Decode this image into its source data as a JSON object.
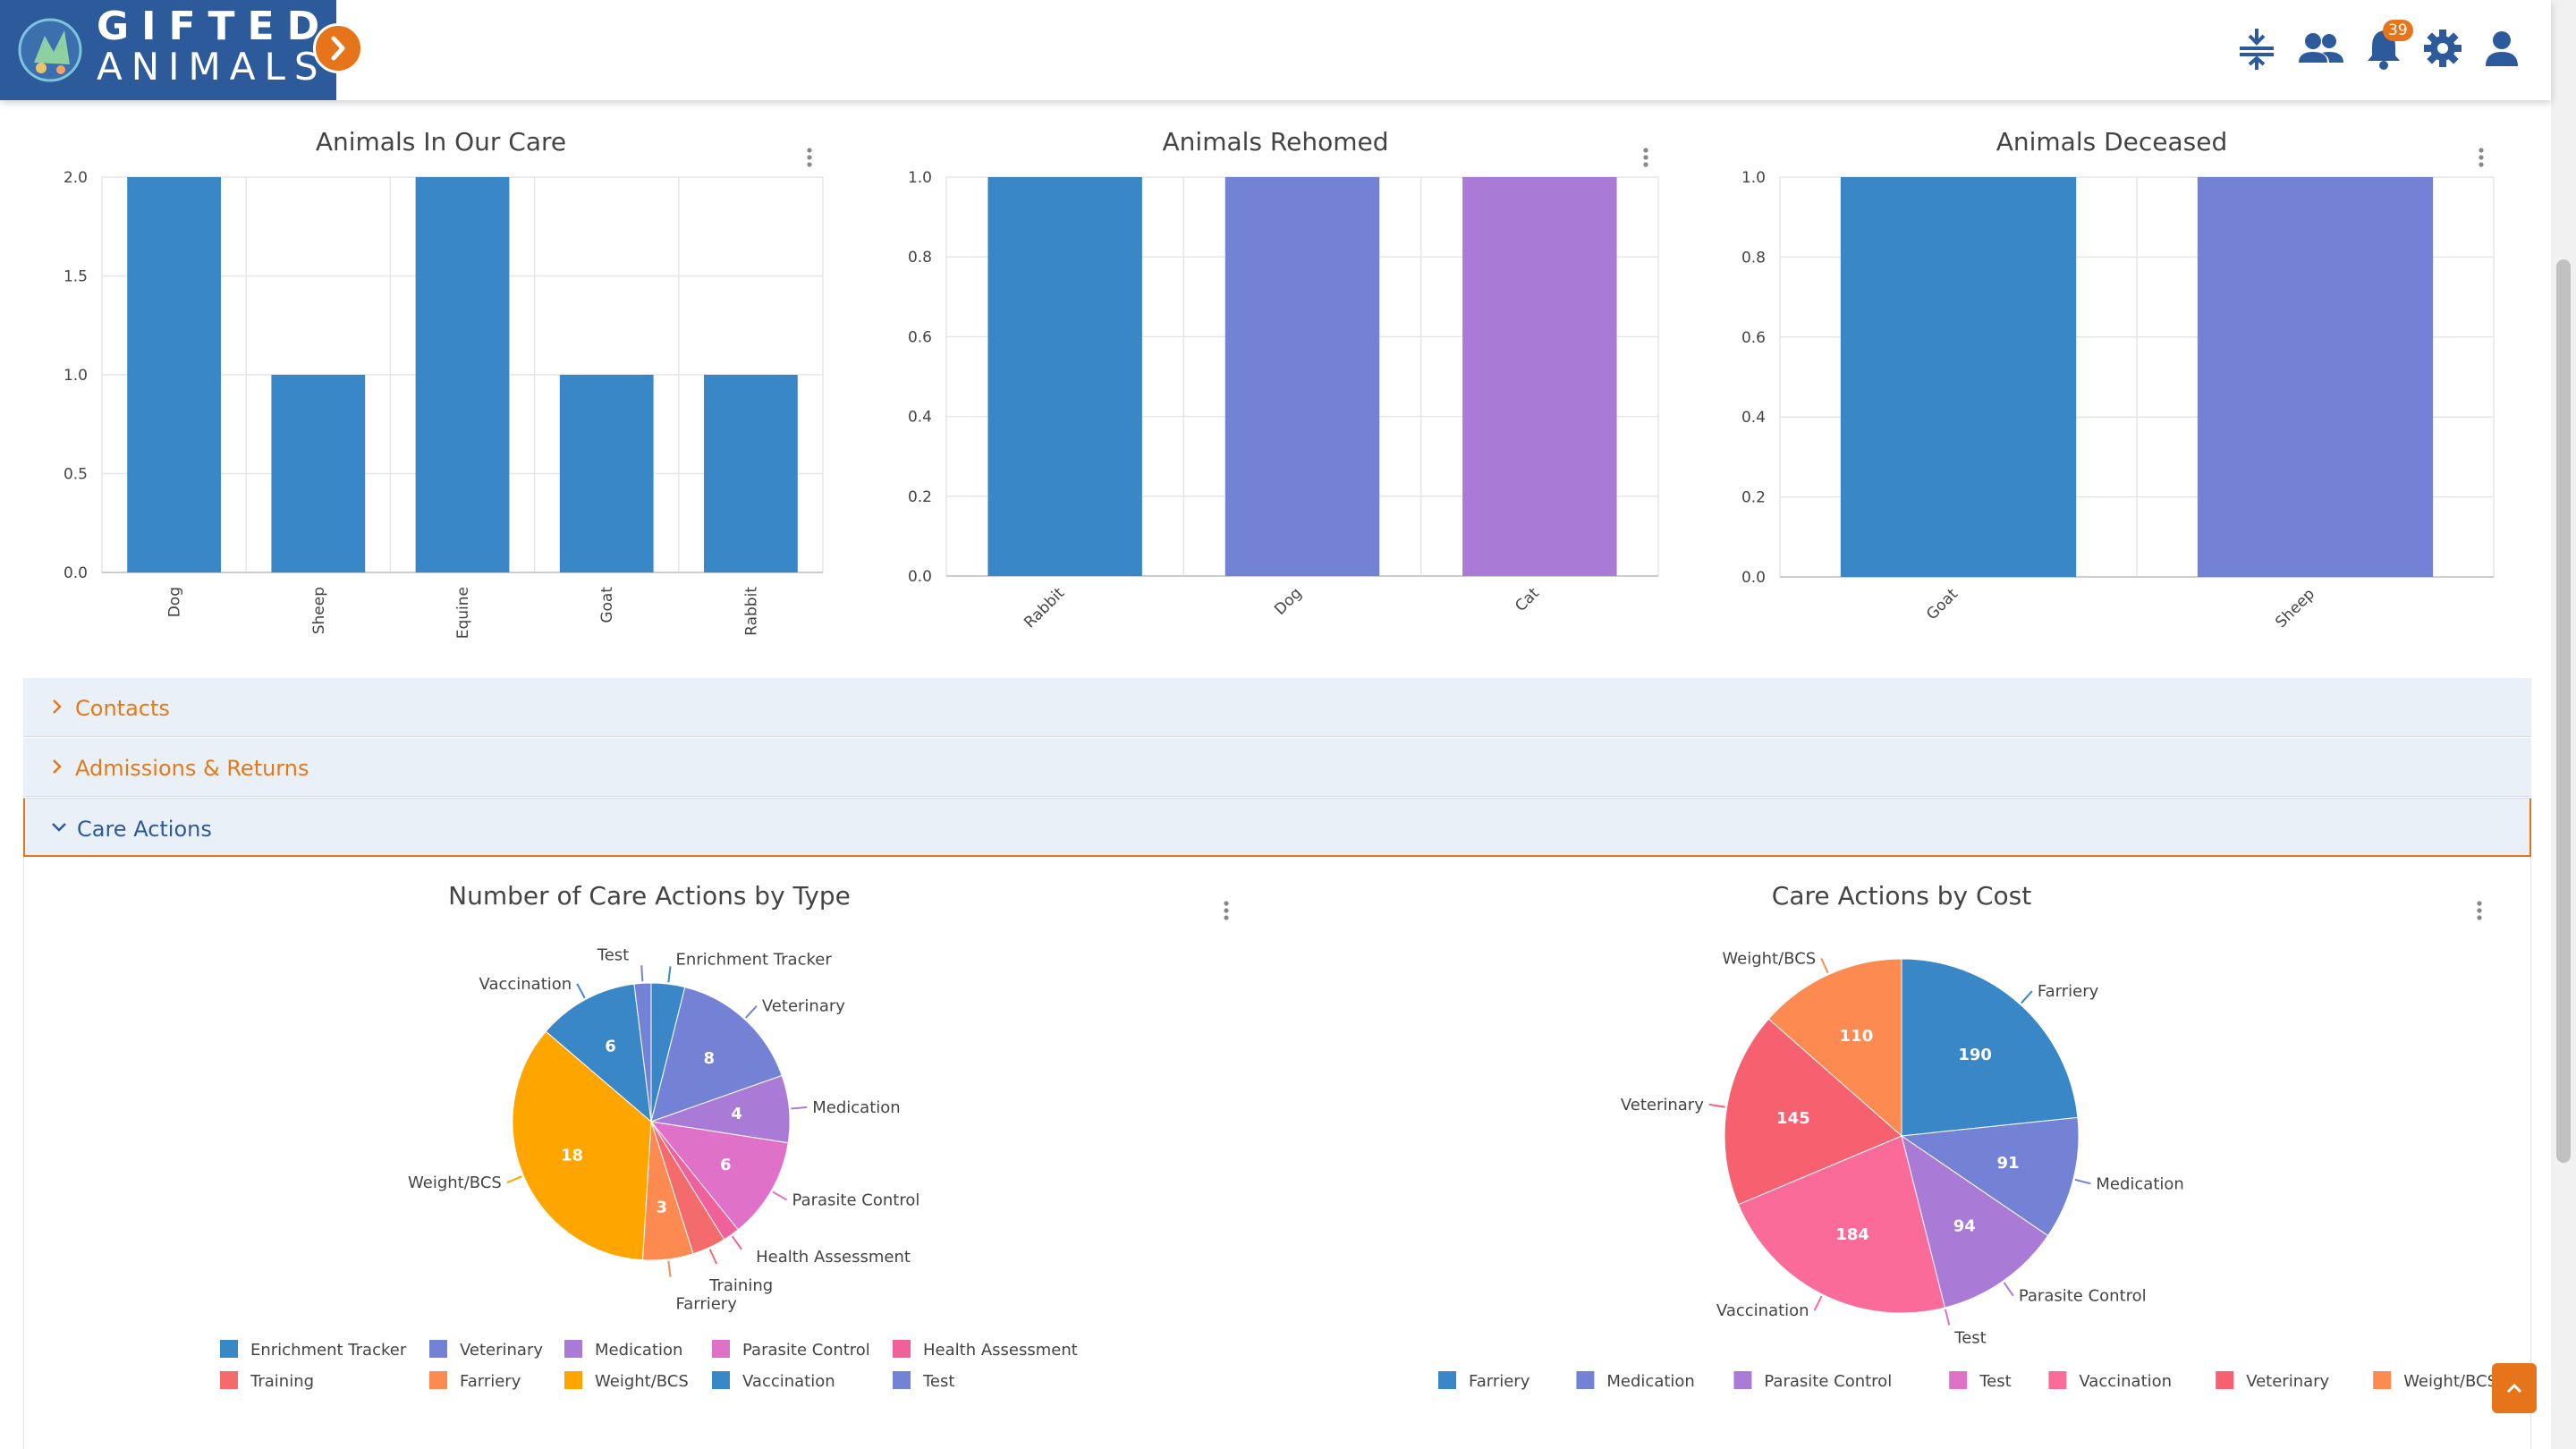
{
  "brand": {
    "line1": "GIFTED",
    "line2": "ANIMALS"
  },
  "header": {
    "notifications_count": "39",
    "icons": [
      "collapse-icon",
      "users-icon",
      "bell-icon",
      "gear-icon",
      "user-icon"
    ]
  },
  "colors": {
    "blue": "#3a87c8",
    "periwinkle": "#7482d6",
    "lavender": "#a97bd6",
    "orange": "#e5741a",
    "navy": "#2d5a9a"
  },
  "charts_top": [
    {
      "title": "Animals In Our Care"
    },
    {
      "title": "Animals Rehomed"
    },
    {
      "title": "Animals Deceased"
    }
  ],
  "accordion": {
    "contacts": "Contacts",
    "admissions": "Admissions & Returns",
    "care_actions": "Care Actions"
  },
  "charts_bottom": [
    {
      "title": "Number of Care Actions by Type"
    },
    {
      "title": "Care Actions by Cost"
    }
  ],
  "chart_data": [
    {
      "type": "bar",
      "title": "Animals In Our Care",
      "categories": [
        "Dog",
        "Sheep",
        "Equine",
        "Goat",
        "Rabbit"
      ],
      "values": [
        2,
        1,
        2,
        1,
        1
      ],
      "ylim": [
        0,
        2
      ],
      "yticks": [
        "0.0",
        "0.5",
        "1.0",
        "1.5",
        "2.0"
      ],
      "colors": [
        "#3a87c8",
        "#3a87c8",
        "#3a87c8",
        "#3a87c8",
        "#3a87c8"
      ],
      "label_rotation": -90,
      "grid": true
    },
    {
      "type": "bar",
      "title": "Animals Rehomed",
      "categories": [
        "Rabbit",
        "Dog",
        "Cat"
      ],
      "values": [
        1,
        1,
        1
      ],
      "ylim": [
        0,
        1
      ],
      "yticks": [
        "0.0",
        "0.2",
        "0.4",
        "0.6",
        "0.8",
        "1.0"
      ],
      "colors": [
        "#3a87c8",
        "#7482d6",
        "#a97bd6"
      ],
      "label_rotation": -45,
      "grid": true
    },
    {
      "type": "bar",
      "title": "Animals Deceased",
      "categories": [
        "Goat",
        "Sheep"
      ],
      "values": [
        1,
        1
      ],
      "ylim": [
        0,
        1
      ],
      "yticks": [
        "0.0",
        "0.2",
        "0.4",
        "0.6",
        "0.8",
        "1.0"
      ],
      "colors": [
        "#3a87c8",
        "#7482d6"
      ],
      "label_rotation": -45,
      "grid": true
    },
    {
      "type": "pie",
      "title": "Number of Care Actions by Type",
      "legend_position": "bottom",
      "slices": [
        {
          "label": "Enrichment Tracker",
          "value": 2,
          "color": "#3a87c8"
        },
        {
          "label": "Veterinary",
          "value": 8,
          "color": "#7482d6"
        },
        {
          "label": "Medication",
          "value": 4,
          "color": "#a97bd6"
        },
        {
          "label": "Parasite Control",
          "value": 6,
          "color": "#df72c8"
        },
        {
          "label": "Health Assessment",
          "value": 1,
          "color": "#f0609a"
        },
        {
          "label": "Training",
          "value": 2,
          "color": "#f36b6b"
        },
        {
          "label": "Farriery",
          "value": 3,
          "color": "#fd8a50"
        },
        {
          "label": "Weight/BCS",
          "value": 18,
          "color": "#ffa500"
        },
        {
          "label": "Vaccination",
          "value": 6,
          "color": "#3a87c8"
        },
        {
          "label": "Test",
          "value": 1,
          "color": "#7482d6"
        }
      ]
    },
    {
      "type": "pie",
      "title": "Care Actions by Cost",
      "legend_position": "bottom",
      "slices": [
        {
          "label": "Farriery",
          "value": 190,
          "color": "#3a87c8"
        },
        {
          "label": "Medication",
          "value": 91,
          "color": "#7482d6"
        },
        {
          "label": "Parasite Control",
          "value": 94,
          "color": "#a97bd6"
        },
        {
          "label": "Test",
          "value": 0,
          "color": "#df72c8"
        },
        {
          "label": "Vaccination",
          "value": 184,
          "color": "#fb6b9a"
        },
        {
          "label": "Veterinary",
          "value": 145,
          "color": "#f6606f"
        },
        {
          "label": "Weight/BCS",
          "value": 110,
          "color": "#fd8a50"
        }
      ]
    }
  ]
}
